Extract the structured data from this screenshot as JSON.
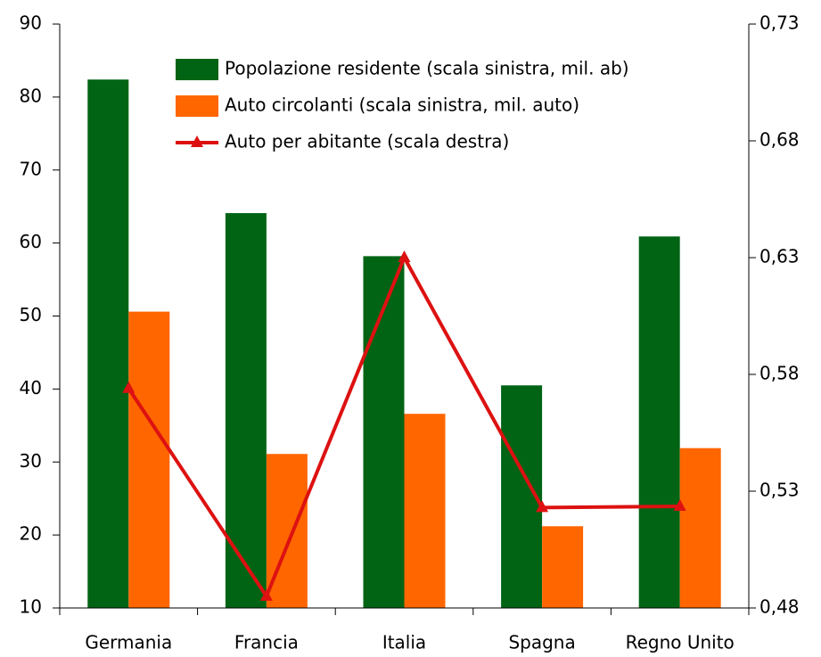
{
  "chart_data": {
    "type": "bar",
    "categories": [
      "Germania",
      "Francia",
      "Italia",
      "Spagna",
      "Regno Unito"
    ],
    "series": [
      {
        "name": "Popolazione residente (scala sinistra, mil. ab)",
        "color": "#006414",
        "type": "bar",
        "values": [
          82.4,
          64.1,
          58.2,
          40.5,
          60.9
        ]
      },
      {
        "name": "Auto circolanti (scala sinistra, mil. auto)",
        "color": "#ff6600",
        "type": "bar",
        "values": [
          50.6,
          31.1,
          36.6,
          21.2,
          31.9
        ]
      },
      {
        "name": "Auto per abitante (scala destra)",
        "color": "#dd1111",
        "type": "line",
        "axis": "y2",
        "values": [
          0.574,
          0.485,
          0.63,
          0.523,
          0.5235
        ]
      }
    ],
    "ylim": [
      10,
      90
    ],
    "yticks": [
      10,
      20,
      30,
      40,
      50,
      60,
      70,
      80,
      90
    ],
    "y2lim": [
      0.48,
      0.73
    ],
    "y2ticks": [
      {
        "value": 0.48,
        "label": "0,48"
      },
      {
        "value": 0.53,
        "label": "0,53"
      },
      {
        "value": 0.58,
        "label": "0,58"
      },
      {
        "value": 0.63,
        "label": "0,63"
      },
      {
        "value": 0.68,
        "label": "0,68"
      },
      {
        "value": 0.73,
        "label": "0,73"
      }
    ],
    "legend": "top-right"
  }
}
